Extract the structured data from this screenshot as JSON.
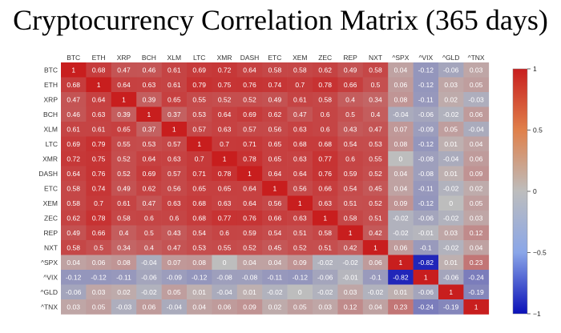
{
  "chart_data": {
    "type": "heatmap",
    "title": "Cryptocurrency Correlation Matrix (365 days)",
    "labels": [
      "BTC",
      "ETH",
      "XRP",
      "BCH",
      "XLM",
      "LTC",
      "XMR",
      "DASH",
      "ETC",
      "XEM",
      "ZEC",
      "REP",
      "NXT",
      "^SPX",
      "^VIX",
      "^GLD",
      "^TNX"
    ],
    "values": [
      [
        1,
        0.68,
        0.47,
        0.46,
        0.61,
        0.69,
        0.72,
        0.64,
        0.58,
        0.58,
        0.62,
        0.49,
        0.58,
        0.04,
        -0.12,
        -0.06,
        0.03
      ],
      [
        0.68,
        1,
        0.64,
        0.63,
        0.61,
        0.79,
        0.75,
        0.76,
        0.74,
        0.7,
        0.78,
        0.66,
        0.5,
        0.06,
        -0.12,
        0.03,
        0.05
      ],
      [
        0.47,
        0.64,
        1,
        0.39,
        0.65,
        0.55,
        0.52,
        0.52,
        0.49,
        0.61,
        0.58,
        0.4,
        0.34,
        0.08,
        -0.11,
        0.02,
        -0.03
      ],
      [
        0.46,
        0.63,
        0.39,
        1,
        0.37,
        0.53,
        0.64,
        0.69,
        0.62,
        0.47,
        0.6,
        0.5,
        0.4,
        -0.04,
        -0.06,
        -0.02,
        0.06
      ],
      [
        0.61,
        0.61,
        0.65,
        0.37,
        1,
        0.57,
        0.63,
        0.57,
        0.56,
        0.63,
        0.6,
        0.43,
        0.47,
        0.07,
        -0.09,
        0.05,
        -0.04
      ],
      [
        0.69,
        0.79,
        0.55,
        0.53,
        0.57,
        1,
        0.7,
        0.71,
        0.65,
        0.68,
        0.68,
        0.54,
        0.53,
        0.08,
        -0.12,
        0.01,
        0.04
      ],
      [
        0.72,
        0.75,
        0.52,
        0.64,
        0.63,
        0.7,
        1,
        0.78,
        0.65,
        0.63,
        0.77,
        0.6,
        0.55,
        0,
        -0.08,
        -0.04,
        0.06
      ],
      [
        0.64,
        0.76,
        0.52,
        0.69,
        0.57,
        0.71,
        0.78,
        1,
        0.64,
        0.64,
        0.76,
        0.59,
        0.52,
        0.04,
        -0.08,
        0.01,
        0.09
      ],
      [
        0.58,
        0.74,
        0.49,
        0.62,
        0.56,
        0.65,
        0.65,
        0.64,
        1,
        0.56,
        0.66,
        0.54,
        0.45,
        0.04,
        -0.11,
        -0.02,
        0.02
      ],
      [
        0.58,
        0.7,
        0.61,
        0.47,
        0.63,
        0.68,
        0.63,
        0.64,
        0.56,
        1,
        0.63,
        0.51,
        0.52,
        0.09,
        -0.12,
        0,
        0.05
      ],
      [
        0.62,
        0.78,
        0.58,
        0.6,
        0.6,
        0.68,
        0.77,
        0.76,
        0.66,
        0.63,
        1,
        0.58,
        0.51,
        -0.02,
        -0.06,
        -0.02,
        0.03
      ],
      [
        0.49,
        0.66,
        0.4,
        0.5,
        0.43,
        0.54,
        0.6,
        0.59,
        0.54,
        0.51,
        0.58,
        1,
        0.42,
        -0.02,
        -0.01,
        0.03,
        0.12
      ],
      [
        0.58,
        0.5,
        0.34,
        0.4,
        0.47,
        0.53,
        0.55,
        0.52,
        0.45,
        0.52,
        0.51,
        0.42,
        1,
        0.06,
        -0.1,
        -0.02,
        0.04
      ],
      [
        0.04,
        0.06,
        0.08,
        -0.04,
        0.07,
        0.08,
        0,
        0.04,
        0.04,
        0.09,
        -0.02,
        -0.02,
        0.06,
        1,
        -0.82,
        0.01,
        0.23
      ],
      [
        -0.12,
        -0.12,
        -0.11,
        -0.06,
        -0.09,
        -0.12,
        -0.08,
        -0.08,
        -0.11,
        -0.12,
        -0.06,
        -0.01,
        -0.1,
        -0.82,
        1,
        -0.06,
        -0.24
      ],
      [
        -0.06,
        0.03,
        0.02,
        -0.02,
        0.05,
        0.01,
        -0.04,
        0.01,
        -0.02,
        0,
        -0.02,
        0.03,
        -0.02,
        0.01,
        -0.06,
        1,
        -0.19
      ],
      [
        0.03,
        0.05,
        -0.03,
        0.06,
        -0.04,
        0.04,
        0.06,
        0.09,
        0.02,
        0.05,
        0.03,
        0.12,
        0.04,
        0.23,
        -0.24,
        -0.19,
        1
      ]
    ],
    "colorbar": {
      "min": -1,
      "max": 1,
      "ticks": [
        1,
        0.5,
        0,
        -0.5,
        -1
      ],
      "tick_labels": [
        "1",
        "0.5",
        "0",
        "−0.5",
        "−1"
      ]
    },
    "colors": {
      "neg": "#0a10b8",
      "mid": "#bdbdbd",
      "pos": "#c81e1e"
    }
  }
}
